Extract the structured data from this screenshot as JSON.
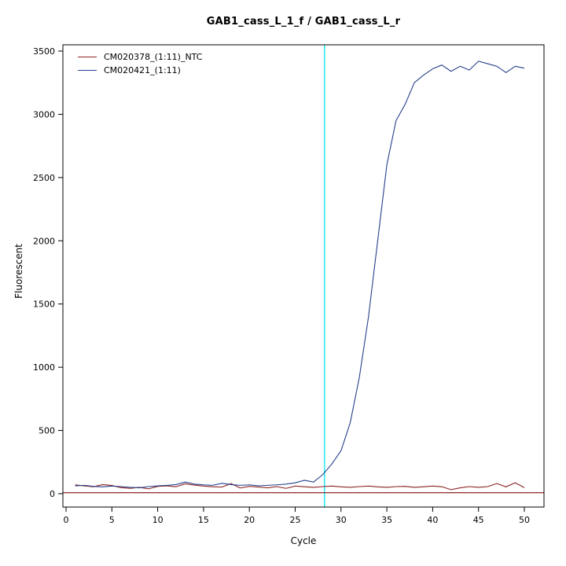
{
  "title": "GAB1_cass_L_1_f / GAB1_cass_L_r",
  "chart_data": {
    "type": "line",
    "title": "GAB1_cass_L_1_f / GAB1_cass_L_r",
    "xlabel": "Cycle",
    "ylabel": "Fluorescent",
    "xlim": [
      0,
      52
    ],
    "ylim": [
      0,
      3500
    ],
    "x_ticks": [
      0,
      5,
      10,
      15,
      20,
      25,
      30,
      35,
      40,
      45,
      50
    ],
    "y_ticks": [
      0,
      500,
      1000,
      1500,
      2000,
      2500,
      3000,
      3500
    ],
    "grid": false,
    "legend_position": "top-left",
    "threshold_cycle": 28.2,
    "threshold_color": "#00e5ee",
    "baseline_value": 8,
    "baseline_color": "#8b2222",
    "x": [
      1,
      2,
      3,
      4,
      5,
      6,
      7,
      8,
      9,
      10,
      11,
      12,
      13,
      14,
      15,
      16,
      17,
      18,
      19,
      20,
      21,
      22,
      23,
      24,
      25,
      26,
      27,
      28,
      29,
      30,
      31,
      32,
      33,
      34,
      35,
      36,
      37,
      38,
      39,
      40,
      41,
      42,
      43,
      44,
      45,
      46,
      47,
      48,
      49,
      50
    ],
    "series": [
      {
        "name": "CM020378_(1:11)_NTC",
        "color": "#8b2222",
        "values": [
          70,
          62,
          55,
          72,
          65,
          48,
          42,
          50,
          38,
          58,
          62,
          55,
          78,
          68,
          60,
          55,
          52,
          80,
          45,
          58,
          52,
          46,
          56,
          42,
          60,
          55,
          50,
          56,
          60,
          54,
          50,
          56,
          60,
          54,
          50,
          56,
          58,
          50,
          55,
          60,
          55,
          32,
          46,
          56,
          50,
          56,
          80,
          54,
          86,
          48
        ]
      },
      {
        "name": "CM020421_(1:11)",
        "color": "#27408b",
        "values": [
          62,
          66,
          58,
          54,
          60,
          56,
          50,
          46,
          56,
          62,
          66,
          72,
          92,
          76,
          70,
          66,
          82,
          72,
          66,
          70,
          62,
          66,
          70,
          76,
          86,
          106,
          92,
          150,
          235,
          340,
          560,
          920,
          1400,
          2000,
          2600,
          2950,
          3080,
          3250,
          3310,
          3360,
          3390,
          3340,
          3380,
          3350,
          3420,
          3400,
          3380,
          3330,
          3380,
          3365
        ]
      }
    ]
  }
}
